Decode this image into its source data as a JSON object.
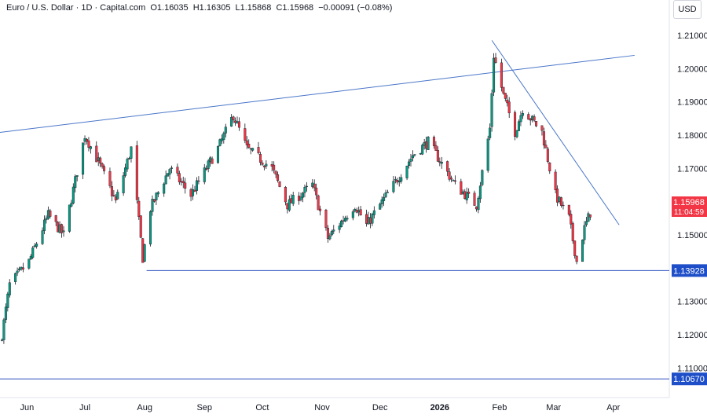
{
  "legend": {
    "symbol": "Euro / U.S. Dollar · 1D · Capital.com",
    "open": "O1.16035",
    "high": "H1.16305",
    "low": "L1.15868",
    "close": "C1.15968",
    "change": "−0.00091 (−0.08%)"
  },
  "currency": "USD",
  "price_tags": {
    "last_price": "1.15968",
    "countdown": "11:04:59",
    "level_support": "1.13928",
    "level_low": "1.10670"
  },
  "colors": {
    "up": "#089981",
    "down": "#f23645",
    "trendline": "#4a76c9",
    "support_line": "#2a4fbf",
    "price_tag": "#f23645",
    "level_tag": "#1e4fc8"
  },
  "chart_data": {
    "type": "candlestick",
    "y_ticks": [
      "1.11000",
      "1.12000",
      "1.13000",
      "1.15000",
      "1.17000",
      "1.18000",
      "1.19000",
      "1.20000",
      "1.21000"
    ],
    "x_ticks": [
      {
        "label": "Jun",
        "date": "2025-06-01"
      },
      {
        "label": "Jul",
        "date": "2025-07-01"
      },
      {
        "label": "Aug",
        "date": "2025-08-01"
      },
      {
        "label": "Sep",
        "date": "2025-09-01"
      },
      {
        "label": "Oct",
        "date": "2025-10-01"
      },
      {
        "label": "Nov",
        "date": "2025-11-01"
      },
      {
        "label": "Dec",
        "date": "2025-12-01"
      },
      {
        "label": "2026",
        "date": "2026-01-01",
        "bold": true
      },
      {
        "label": "Feb",
        "date": "2026-02-01"
      },
      {
        "label": "Mar",
        "date": "2026-03-01"
      },
      {
        "label": "Apr",
        "date": "2026-04-01"
      }
    ],
    "y_range": [
      1.1025,
      1.2145
    ],
    "date_range": [
      "2025-05-18",
      "2026-04-30"
    ],
    "price_anchors": [
      {
        "date": "2025-05-19",
        "close": 1.12
      },
      {
        "date": "2025-05-23",
        "close": 1.135
      },
      {
        "date": "2025-06-02",
        "close": 1.142
      },
      {
        "date": "2025-06-12",
        "close": 1.156
      },
      {
        "date": "2025-06-20",
        "close": 1.15
      },
      {
        "date": "2025-07-01",
        "close": 1.18
      },
      {
        "date": "2025-07-08",
        "close": 1.172
      },
      {
        "date": "2025-07-17",
        "close": 1.16
      },
      {
        "date": "2025-07-25",
        "close": 1.176
      },
      {
        "date": "2025-07-31",
        "close": 1.143
      },
      {
        "date": "2025-08-04",
        "close": 1.158
      },
      {
        "date": "2025-08-14",
        "close": 1.17
      },
      {
        "date": "2025-08-25",
        "close": 1.162
      },
      {
        "date": "2025-09-08",
        "close": 1.176
      },
      {
        "date": "2025-09-16",
        "close": 1.186
      },
      {
        "date": "2025-09-23",
        "close": 1.176
      },
      {
        "date": "2025-10-06",
        "close": 1.17
      },
      {
        "date": "2025-10-14",
        "close": 1.159
      },
      {
        "date": "2025-10-27",
        "close": 1.165
      },
      {
        "date": "2025-11-04",
        "close": 1.149
      },
      {
        "date": "2025-11-18",
        "close": 1.159
      },
      {
        "date": "2025-11-24",
        "close": 1.153
      },
      {
        "date": "2025-12-08",
        "close": 1.165
      },
      {
        "date": "2025-12-18",
        "close": 1.174
      },
      {
        "date": "2025-12-26",
        "close": 1.178
      },
      {
        "date": "2026-01-09",
        "close": 1.165
      },
      {
        "date": "2026-01-20",
        "close": 1.159
      },
      {
        "date": "2026-01-27",
        "close": 1.182
      },
      {
        "date": "2026-01-29",
        "close": 1.204
      },
      {
        "date": "2026-02-03",
        "close": 1.192
      },
      {
        "date": "2026-02-09",
        "close": 1.181
      },
      {
        "date": "2026-02-13",
        "close": 1.188
      },
      {
        "date": "2026-02-23",
        "close": 1.181
      },
      {
        "date": "2026-03-02",
        "close": 1.162
      },
      {
        "date": "2026-03-09",
        "close": 1.155
      },
      {
        "date": "2026-03-13",
        "close": 1.142
      },
      {
        "date": "2026-03-17",
        "close": 1.152
      },
      {
        "date": "2026-03-22",
        "close": 1.1598
      }
    ],
    "trendlines": [
      {
        "name": "upper-resistance",
        "from": {
          "date": "2025-04-22",
          "value": 1.179
        },
        "to": {
          "date": "2026-04-12",
          "value": 1.204
        }
      },
      {
        "name": "descending-resistance",
        "from": {
          "date": "2026-01-28",
          "value": 1.2085
        },
        "to": {
          "date": "2026-04-04",
          "value": 1.153
        }
      },
      {
        "name": "support",
        "from": {
          "date": "2025-08-02",
          "value": 1.13928
        },
        "to": {
          "date": "2026-04-30",
          "value": 1.13928
        }
      },
      {
        "name": "lower-level",
        "from": {
          "date": "2025-05-10",
          "value": 1.1067
        },
        "to": {
          "date": "2026-04-30",
          "value": 1.1067
        }
      }
    ]
  }
}
